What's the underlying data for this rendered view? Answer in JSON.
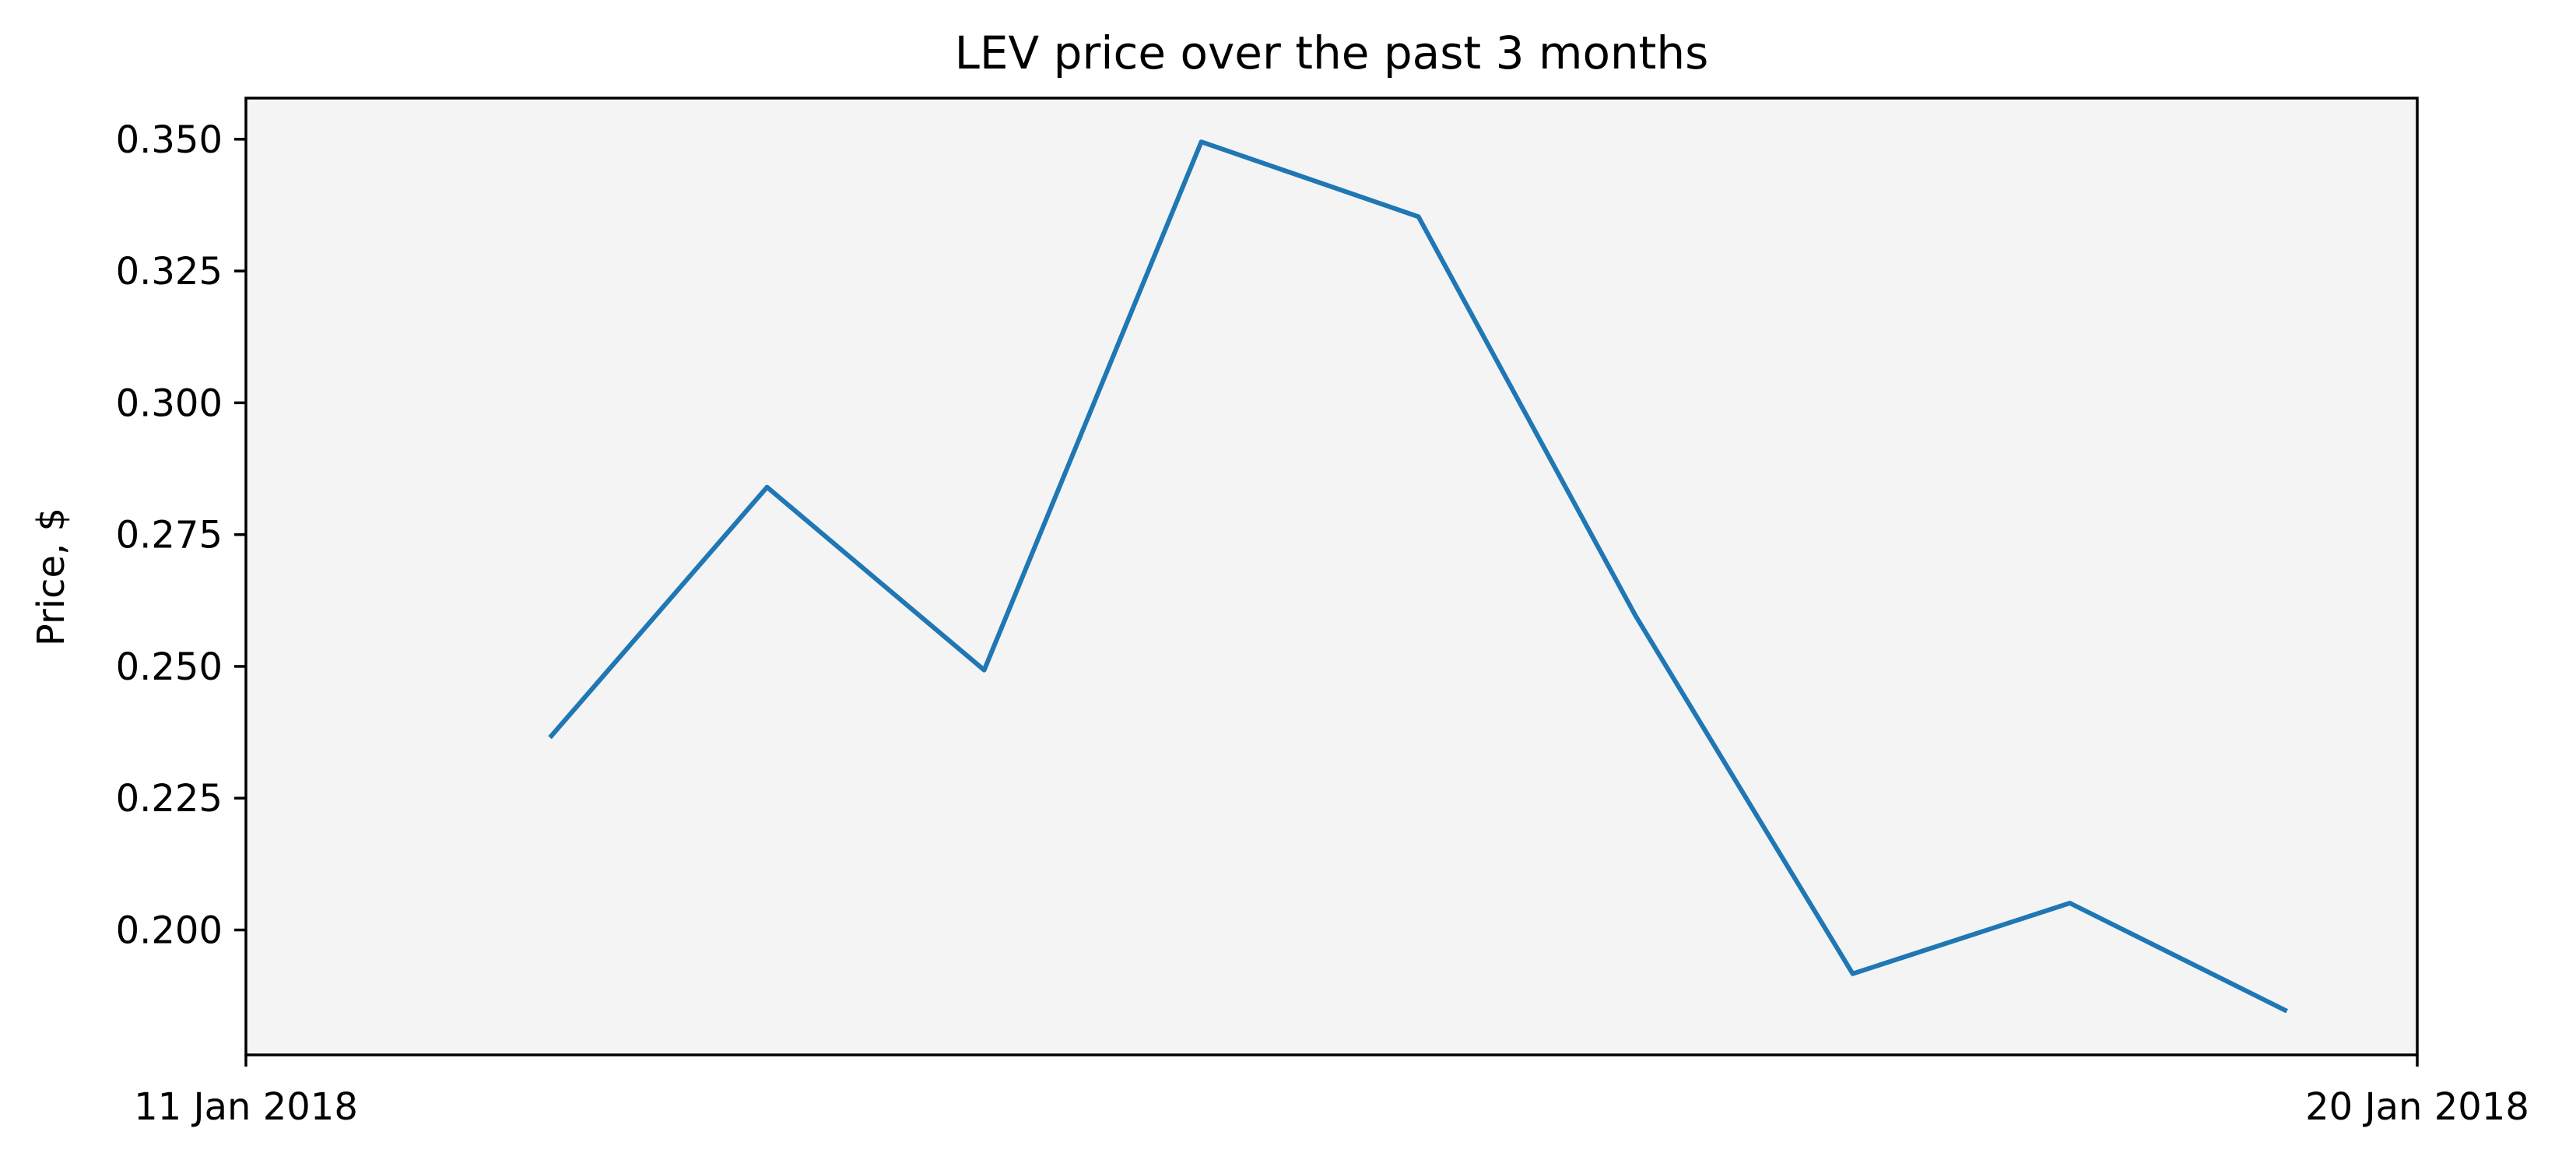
{
  "chart_data": {
    "type": "line",
    "title": "LEV price over the past 3 months",
    "xlabel": "",
    "ylabel": "Price, $",
    "x": [
      "2018-01-11",
      "2018-01-12",
      "2018-01-13",
      "2018-01-14",
      "2018-01-15",
      "2018-01-16",
      "2018-01-17",
      "2018-01-18",
      "2018-01-19"
    ],
    "series": [
      {
        "values": [
          0.2365,
          0.284,
          0.2493,
          0.3495,
          0.3353,
          0.2596,
          0.1917,
          0.2051,
          0.1846
        ]
      }
    ],
    "xlim": [
      "2018-01-10",
      "2018-01-20"
    ],
    "ylim": [
      0.1763,
      0.3578
    ],
    "x_tick_labels": [
      "11 Jan 2018",
      "20 Jan 2018"
    ],
    "y_ticks": [
      0.2,
      0.225,
      0.25,
      0.275,
      0.3,
      0.325,
      0.35
    ],
    "y_tick_labels": [
      "0.200",
      "0.225",
      "0.250",
      "0.275",
      "0.300",
      "0.325",
      "0.350"
    ],
    "grid": false,
    "legend": "none",
    "colors": {
      "line": "#1f77b4",
      "plot_background": "#f4f4f4",
      "axes": "#000000"
    }
  }
}
